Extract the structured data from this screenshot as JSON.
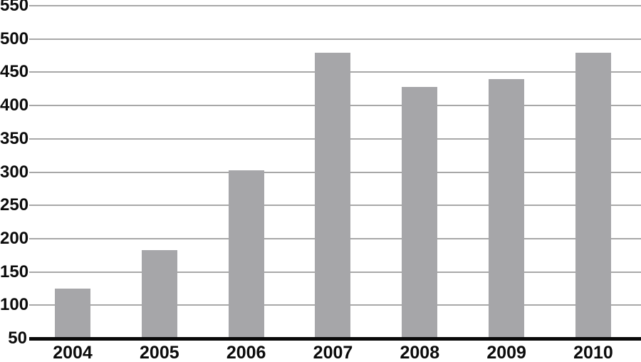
{
  "chart_data": {
    "type": "bar",
    "title": "",
    "xlabel": "",
    "ylabel": "",
    "categories": [
      "2004",
      "2005",
      "2006",
      "2007",
      "2008",
      "2009",
      "2010"
    ],
    "values": [
      125,
      183,
      303,
      479,
      428,
      440,
      479
    ],
    "ylim": [
      50,
      550
    ],
    "yticks": [
      550,
      500,
      450,
      400,
      350,
      300,
      250,
      200,
      150,
      100,
      50
    ],
    "grid": true,
    "legend": "none",
    "bar_color": "#a6a6a9",
    "gridline_color": "#a8a8a8",
    "axis_color": "#0a0a0a",
    "label_color": "#0c0c0c",
    "background": "#ffffff"
  }
}
